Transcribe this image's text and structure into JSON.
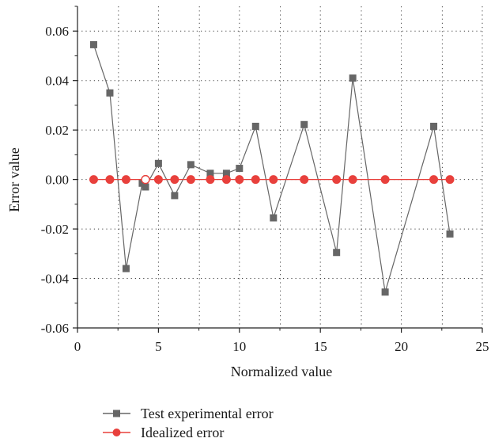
{
  "chart_data": {
    "type": "line",
    "xlabel": "Normalized value",
    "ylabel": "Error value",
    "xlim": [
      0,
      25
    ],
    "ylim": [
      -0.06,
      0.07
    ],
    "xticks": [
      0,
      5,
      10,
      15,
      20,
      25
    ],
    "xtick_labels": [
      "0",
      "5",
      "10",
      "15",
      "20",
      "25"
    ],
    "yticks": [
      -0.06,
      -0.04,
      -0.02,
      0.0,
      0.02,
      0.04,
      0.06
    ],
    "ytick_labels": [
      "-0.06",
      "-0.04",
      "-0.02",
      "0.00",
      "0.02",
      "0.04",
      "0.06"
    ],
    "grid": "dotted",
    "legend_position": "bottom-left",
    "series": [
      {
        "name": "Test experimental error",
        "color": "#666666",
        "marker": "square",
        "x": [
          1,
          2,
          3,
          4,
          4.2,
          5,
          6,
          7,
          8.2,
          9.2,
          10,
          11,
          12.1,
          14,
          16,
          17,
          19,
          22,
          23
        ],
        "y": [
          0.0545,
          0.035,
          -0.036,
          -0.0015,
          -0.003,
          0.0065,
          -0.0065,
          0.006,
          0.0025,
          0.0025,
          0.0045,
          0.0215,
          -0.0155,
          0.0222,
          -0.0295,
          0.041,
          -0.0455,
          0.0215,
          -0.022
        ]
      },
      {
        "name": "Idealized error",
        "color": "#e8403c",
        "marker": "circle",
        "x": [
          1,
          2,
          3,
          4.2,
          5,
          6,
          7,
          8.2,
          9.2,
          10,
          11,
          12.1,
          14,
          16,
          17,
          19,
          22,
          23
        ],
        "y": [
          0,
          0,
          0,
          0,
          0,
          0,
          0,
          0,
          0,
          0,
          0,
          0,
          0,
          0,
          0,
          0,
          0,
          0
        ],
        "hollow_index": [
          3
        ]
      }
    ]
  }
}
